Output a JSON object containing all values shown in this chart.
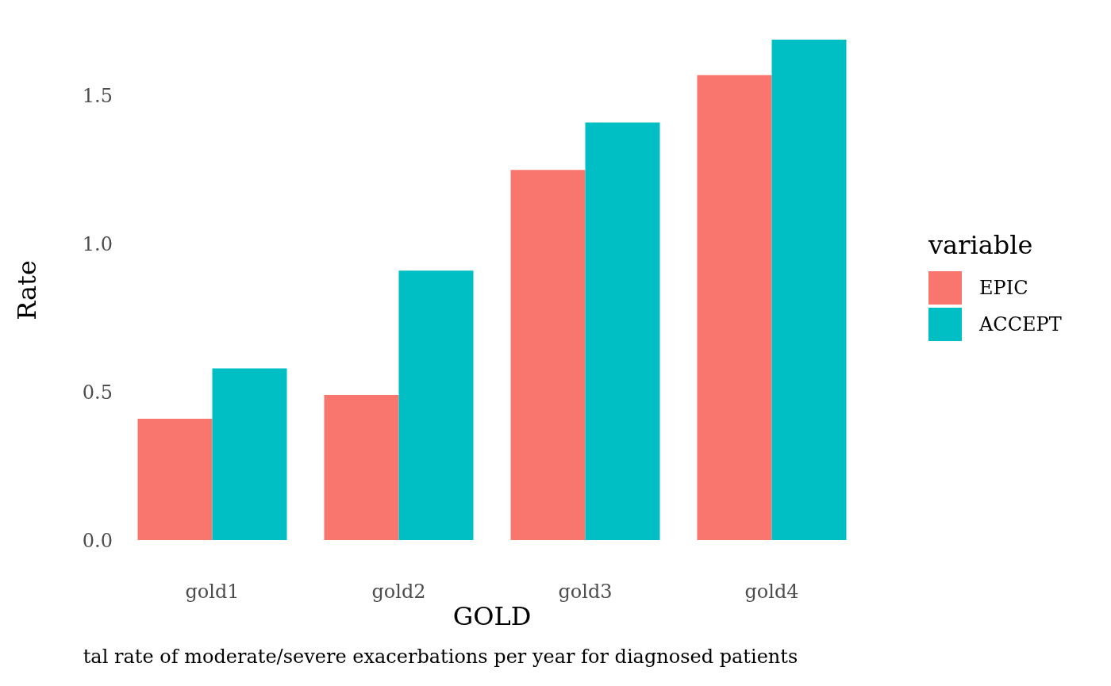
{
  "chart_data": {
    "type": "bar",
    "xlabel": "GOLD",
    "ylabel": "Rate",
    "legend_title": "variable",
    "annotations": [
      "tal rate of moderate/severe exacerbations per year for diagnosed patients"
    ],
    "categories": [
      "gold1",
      "gold2",
      "gold3",
      "gold4"
    ],
    "series": [
      {
        "name": "EPIC",
        "color": "#f8766d",
        "values": [
          0.41,
          0.49,
          1.25,
          1.57
        ]
      },
      {
        "name": "ACCEPT",
        "color": "#00bfc4",
        "values": [
          0.58,
          0.91,
          1.41,
          1.69
        ]
      }
    ],
    "ylim": [
      0,
      1.69
    ],
    "yticks": [
      {
        "value": 0,
        "label": "0.0"
      },
      0.5,
      {
        "value": 1,
        "label": "1.0"
      },
      1.5
    ],
    "grid": false,
    "legend": "right"
  }
}
